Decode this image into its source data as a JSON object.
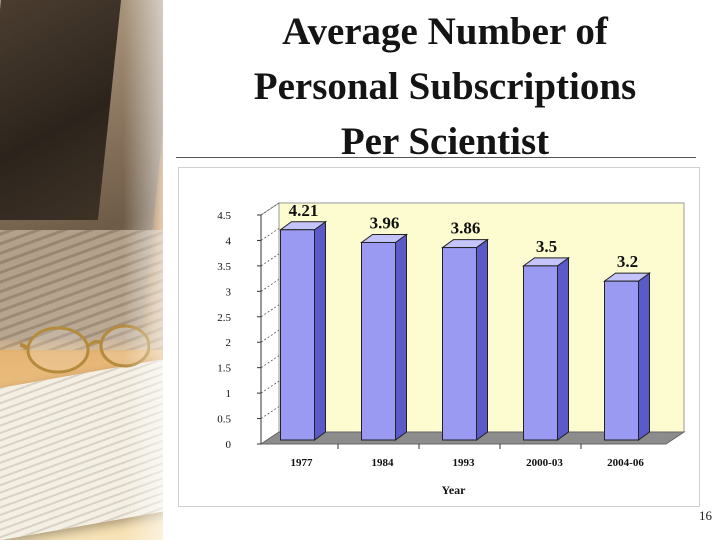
{
  "slide": {
    "title_lines": [
      "Average Number of",
      "Personal Subscriptions",
      "Per Scientist"
    ],
    "slide_number": "16"
  },
  "colors": {
    "bar_front": "#9a9af2",
    "bar_side": "#5a5ac8",
    "plot_back": "#fdfbd0",
    "floor": "#8c8c8c"
  },
  "chart_data": {
    "type": "bar",
    "title": "",
    "xlabel": "Year",
    "ylabel": "",
    "categories": [
      "1977",
      "1984",
      "1993",
      "2000-03",
      "2004-06"
    ],
    "values": [
      4.21,
      3.96,
      3.86,
      3.5,
      3.2
    ],
    "data_labels": [
      "4.21",
      "3.96",
      "3.86",
      "3.5",
      "3.2"
    ],
    "ylim": [
      0,
      4.5
    ],
    "yticks": [
      "0",
      "0.5",
      "1",
      "1.5",
      "2",
      "2.5",
      "3",
      "3.5",
      "4",
      "4.5"
    ],
    "grid": true,
    "style": "3d"
  }
}
